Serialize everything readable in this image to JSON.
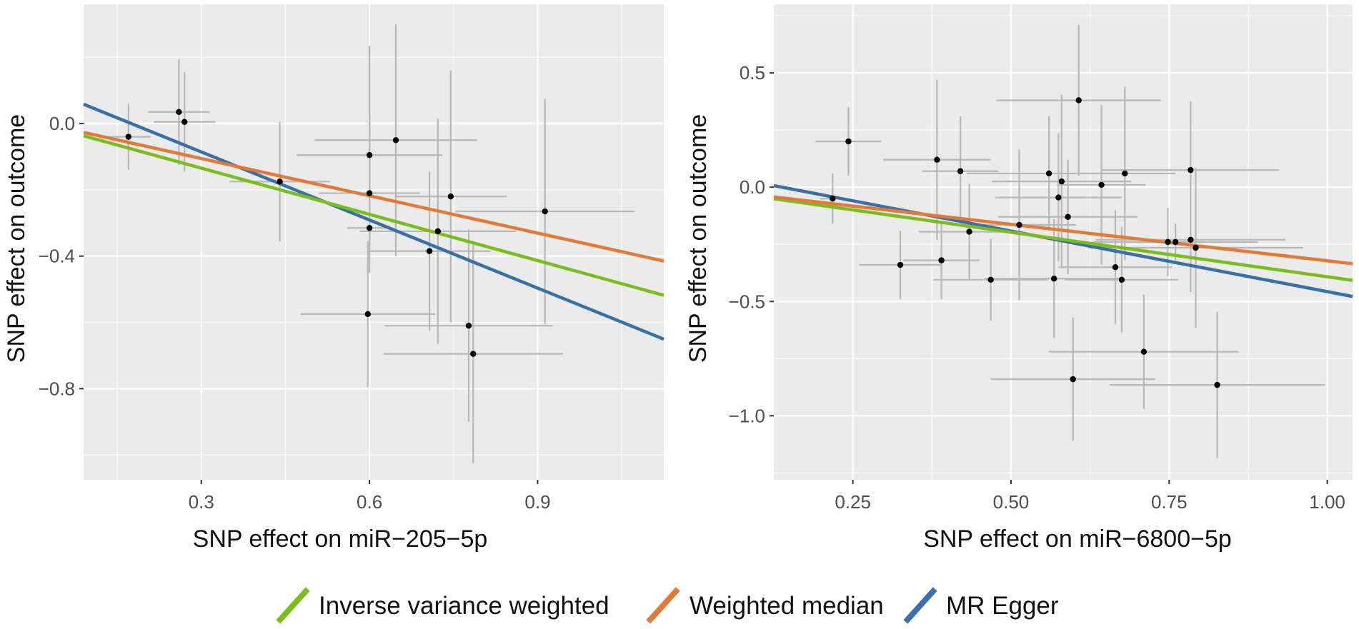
{
  "legend": [
    {
      "label": "Inverse variance weighted",
      "color": "#7cbd1e"
    },
    {
      "label": "Weighted median",
      "color": "#e07b39"
    },
    {
      "label": "MR Egger",
      "color": "#3a70a6"
    }
  ],
  "chart_data": [
    {
      "type": "scatter",
      "xlabel": "SNP effect on miR−205−5p",
      "ylabel": "SNP effect on outcome",
      "xlim": [
        0.09,
        1.125
      ],
      "ylim": [
        -1.075,
        0.36
      ],
      "xticks": [
        0.3,
        0.6,
        0.9
      ],
      "xtick_labels": [
        "0.3",
        "0.6",
        "0.9"
      ],
      "yticks": [
        0.0,
        -0.4,
        -0.8
      ],
      "ytick_labels": [
        "0.0",
        "−0.4",
        "−0.8"
      ],
      "grid": true,
      "points": [
        {
          "x": 0.17,
          "y": -0.04,
          "xerr": 0.04,
          "yerr": 0.1
        },
        {
          "x": 0.26,
          "y": 0.035,
          "xerr": 0.055,
          "yerr": 0.16
        },
        {
          "x": 0.27,
          "y": 0.005,
          "xerr": 0.055,
          "yerr": 0.15
        },
        {
          "x": 0.44,
          "y": -0.175,
          "xerr": 0.09,
          "yerr": 0.18
        },
        {
          "x": 0.6,
          "y": -0.095,
          "xerr": 0.13,
          "yerr": 0.33
        },
        {
          "x": 0.6,
          "y": -0.21,
          "xerr": 0.09,
          "yerr": 0.24
        },
        {
          "x": 0.597,
          "y": -0.575,
          "xerr": 0.12,
          "yerr": 0.22
        },
        {
          "x": 0.6,
          "y": -0.315,
          "xerr": 0.04,
          "yerr": 0.08
        },
        {
          "x": 0.647,
          "y": -0.05,
          "xerr": 0.145,
          "yerr": 0.35
        },
        {
          "x": 0.707,
          "y": -0.385,
          "xerr": 0.11,
          "yerr": 0.24
        },
        {
          "x": 0.722,
          "y": -0.325,
          "xerr": 0.14,
          "yerr": 0.34
        },
        {
          "x": 0.745,
          "y": -0.22,
          "xerr": 0.1,
          "yerr": 0.38
        },
        {
          "x": 0.777,
          "y": -0.61,
          "xerr": 0.15,
          "yerr": 0.29
        },
        {
          "x": 0.785,
          "y": -0.695,
          "xerr": 0.16,
          "yerr": 0.33
        },
        {
          "x": 0.913,
          "y": -0.265,
          "xerr": 0.16,
          "yerr": 0.34
        }
      ],
      "lines": [
        {
          "method": "Inverse variance weighted",
          "slope": -0.465,
          "intercept": 0.005
        },
        {
          "method": "Weighted median",
          "slope": -0.375,
          "intercept": 0.007
        },
        {
          "method": "MR Egger",
          "slope": -0.685,
          "intercept": 0.12
        }
      ]
    },
    {
      "type": "scatter",
      "xlabel": "SNP effect on miR−6800−5p",
      "ylabel": "SNP effect on outcome",
      "xlim": [
        0.125,
        1.04
      ],
      "ylim": [
        -1.28,
        0.8
      ],
      "xticks": [
        0.25,
        0.5,
        0.75,
        1.0
      ],
      "xtick_labels": [
        "0.25",
        "0.50",
        "0.75",
        "1.00"
      ],
      "yticks": [
        0.5,
        0.0,
        -0.5,
        -1.0
      ],
      "ytick_labels": [
        "0.5",
        "0.0",
        "−0.5",
        "−1.0"
      ],
      "grid": true,
      "points": [
        {
          "x": 0.218,
          "y": -0.05,
          "xerr": 0.02,
          "yerr": 0.11
        },
        {
          "x": 0.243,
          "y": 0.2,
          "xerr": 0.052,
          "yerr": 0.15
        },
        {
          "x": 0.325,
          "y": -0.34,
          "xerr": 0.065,
          "yerr": 0.15
        },
        {
          "x": 0.383,
          "y": 0.12,
          "xerr": 0.085,
          "yerr": 0.35
        },
        {
          "x": 0.39,
          "y": -0.32,
          "xerr": 0.06,
          "yerr": 0.17
        },
        {
          "x": 0.42,
          "y": 0.07,
          "xerr": 0.06,
          "yerr": 0.24
        },
        {
          "x": 0.434,
          "y": -0.195,
          "xerr": 0.08,
          "yerr": 0.21
        },
        {
          "x": 0.468,
          "y": -0.405,
          "xerr": 0.09,
          "yerr": 0.18
        },
        {
          "x": 0.513,
          "y": -0.165,
          "xerr": 0.09,
          "yerr": 0.33
        },
        {
          "x": 0.56,
          "y": 0.06,
          "xerr": 0.13,
          "yerr": 0.25
        },
        {
          "x": 0.568,
          "y": -0.4,
          "xerr": 0.11,
          "yerr": 0.26
        },
        {
          "x": 0.575,
          "y": -0.045,
          "xerr": 0.1,
          "yerr": 0.28
        },
        {
          "x": 0.58,
          "y": 0.025,
          "xerr": 0.11,
          "yerr": 0.38
        },
        {
          "x": 0.59,
          "y": -0.13,
          "xerr": 0.11,
          "yerr": 0.25
        },
        {
          "x": 0.598,
          "y": -0.84,
          "xerr": 0.13,
          "yerr": 0.27
        },
        {
          "x": 0.607,
          "y": 0.38,
          "xerr": 0.13,
          "yerr": 0.33
        },
        {
          "x": 0.643,
          "y": 0.01,
          "xerr": 0.07,
          "yerr": 0.35
        },
        {
          "x": 0.665,
          "y": -0.35,
          "xerr": 0.09,
          "yerr": 0.25
        },
        {
          "x": 0.675,
          "y": -0.405,
          "xerr": 0.09,
          "yerr": 0.23
        },
        {
          "x": 0.68,
          "y": 0.06,
          "xerr": 0.08,
          "yerr": 0.38
        },
        {
          "x": 0.71,
          "y": -0.72,
          "xerr": 0.15,
          "yerr": 0.25
        },
        {
          "x": 0.748,
          "y": -0.24,
          "xerr": 0.09,
          "yerr": 0.15
        },
        {
          "x": 0.76,
          "y": -0.24,
          "xerr": 0.13,
          "yerr": 0.08
        },
        {
          "x": 0.784,
          "y": 0.075,
          "xerr": 0.14,
          "yerr": 0.3
        },
        {
          "x": 0.784,
          "y": -0.23,
          "xerr": 0.15,
          "yerr": 0.23
        },
        {
          "x": 0.792,
          "y": -0.265,
          "xerr": 0.17,
          "yerr": 0.35
        },
        {
          "x": 0.826,
          "y": -0.865,
          "xerr": 0.17,
          "yerr": 0.32
        }
      ],
      "lines": [
        {
          "method": "Inverse variance weighted",
          "slope": -0.39,
          "intercept": -0.002
        },
        {
          "method": "Weighted median",
          "slope": -0.319,
          "intercept": -0.003
        },
        {
          "method": "MR Egger",
          "slope": -0.53,
          "intercept": 0.073
        }
      ]
    }
  ]
}
